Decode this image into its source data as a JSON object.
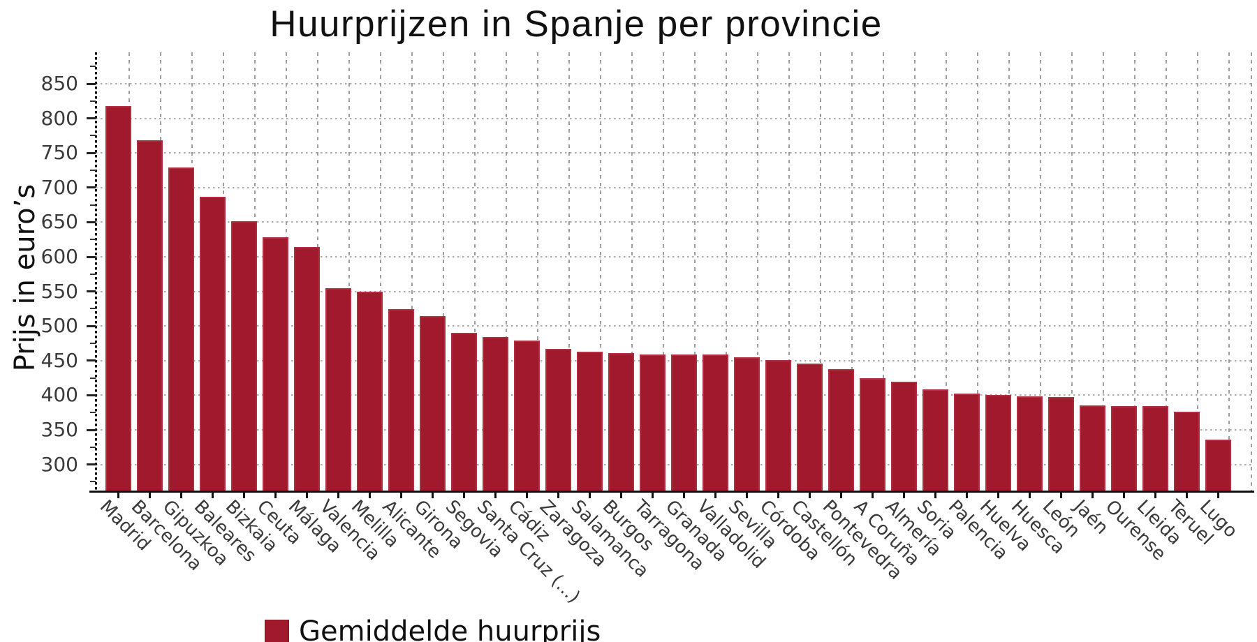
{
  "chart_data": {
    "type": "bar",
    "title": "Huurprijzen in Spanje per provincie",
    "ylabel": "Prijs in euro’s",
    "xlabel": "",
    "categories": [
      "Madrid",
      "Barcelona",
      "Gipuzkoa",
      "Baleares",
      "Bizkaia",
      "Ceuta",
      "Málaga",
      "Valencia",
      "Melilla",
      "Alicante",
      "Girona",
      "Segovia",
      "Santa Cruz (...)",
      "Cádiz",
      "Zaragoza",
      "Salamanca",
      "Burgos",
      "Tarragona",
      "Granada",
      "Valladolid",
      "Sevilla",
      "Córdoba",
      "Castellón",
      "Pontevedra",
      "A Coruña",
      "Almería",
      "Soria",
      "Palencia",
      "Huelva",
      "Huesca",
      "León",
      "Jaén",
      "Ourense",
      "Lleida",
      "Teruel",
      "Lugo"
    ],
    "series": [
      {
        "name": "Gemiddelde huurprijs",
        "values": [
          818,
          768,
          729,
          687,
          651,
          628,
          614,
          555,
          550,
          524,
          514,
          490,
          484,
          479,
          467,
          463,
          461,
          459,
          459,
          459,
          455,
          451,
          446,
          438,
          425,
          420,
          408,
          402,
          400,
          398,
          397,
          385,
          384,
          384,
          376,
          336
        ]
      }
    ],
    "legend": [
      "Gemiddelde huurprijs"
    ],
    "legend_position": "bottom-left",
    "yticks": [
      300,
      350,
      400,
      450,
      500,
      550,
      600,
      650,
      700,
      750,
      800,
      850
    ],
    "ylim": [
      260,
      895
    ],
    "grid": true,
    "bar_color": "#A1192C",
    "tick_label_color": "#3a3a3a",
    "grid_color": "#a8a8a8"
  }
}
